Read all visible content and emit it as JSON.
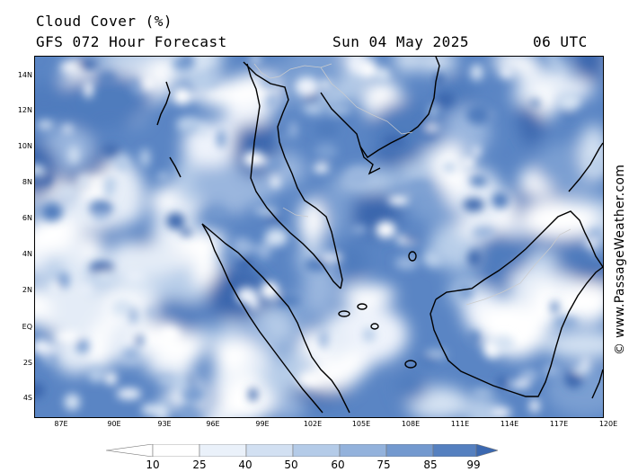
{
  "header": {
    "title": "Cloud Cover (%)",
    "subtitle": "GFS 072 Hour Forecast",
    "date": "Sun 04 May 2025",
    "time": "06 UTC"
  },
  "credit": "© www.PassageWeather.com",
  "map": {
    "x_ticks": [
      "87E",
      "90E",
      "93E",
      "96E",
      "99E",
      "102E",
      "105E",
      "108E",
      "111E",
      "114E",
      "117E",
      "120E"
    ],
    "y_ticks": [
      "14N",
      "12N",
      "10N",
      "8N",
      "6N",
      "4N",
      "2N",
      "EQ",
      "2S",
      "4S"
    ]
  },
  "legend": {
    "labels": [
      "10",
      "25",
      "40",
      "50",
      "60",
      "75",
      "85",
      "99"
    ],
    "colors": [
      "#ffffff",
      "#eaf1fa",
      "#d2e0f2",
      "#b4cbe8",
      "#93b2dc",
      "#7399cf",
      "#5580c0",
      "#3b68b0"
    ]
  }
}
